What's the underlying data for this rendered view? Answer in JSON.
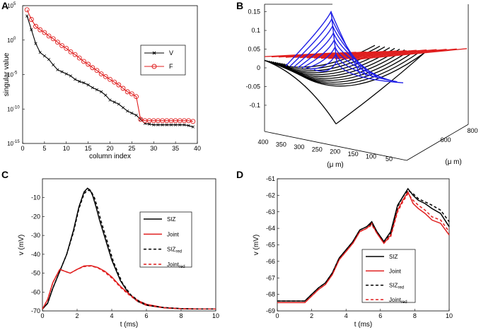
{
  "figure": {
    "colors": {
      "black": "#000000",
      "red": "#e01f1f",
      "blue": "#1f1fe6"
    }
  },
  "chart_data": [
    {
      "panel": "A",
      "type": "line",
      "y_scale": "log",
      "xlabel": "column index",
      "ylabel": "singular value",
      "xlim": [
        0,
        40
      ],
      "ylim": [
        1e-15,
        100000.0
      ],
      "x_ticks": [
        "0",
        "5",
        "10",
        "15",
        "20",
        "25",
        "30",
        "35",
        "40"
      ],
      "y_ticks": [
        {
          "base": "10",
          "exp": "-15"
        },
        {
          "base": "10",
          "exp": "-10"
        },
        {
          "base": "10",
          "exp": "-5"
        },
        {
          "base": "10",
          "exp": "0"
        },
        {
          "base": "10",
          "exp": "5"
        }
      ],
      "legend": [
        "V",
        "F"
      ],
      "series": [
        {
          "name": "V",
          "color": "#000000",
          "marker": "x",
          "x": [
            1,
            2,
            3,
            4,
            5,
            6,
            7,
            8,
            9,
            10,
            11,
            12,
            13,
            14,
            15,
            16,
            17,
            18,
            19,
            20,
            21,
            22,
            23,
            24,
            25,
            26,
            27,
            28,
            29,
            30,
            31,
            32,
            33,
            34,
            35,
            36,
            37,
            38,
            39
          ],
          "log10_values": [
            3.5,
            1.5,
            -0.5,
            -1.8,
            -2.3,
            -2.8,
            -3.6,
            -4.3,
            -4.6,
            -4.9,
            -5.2,
            -5.7,
            -6.0,
            -6.2,
            -6.5,
            -6.9,
            -7.2,
            -7.5,
            -8.0,
            -8.7,
            -9.0,
            -9.3,
            -9.8,
            -10.3,
            -10.6,
            -10.9,
            -11.5,
            -12.1,
            -12.2,
            -12.3,
            -12.3,
            -12.3,
            -12.3,
            -12.3,
            -12.3,
            -12.3,
            -12.3,
            -12.4,
            -12.6
          ]
        },
        {
          "name": "F",
          "color": "#e01f1f",
          "marker": "o",
          "x": [
            1,
            2,
            3,
            4,
            5,
            6,
            7,
            8,
            9,
            10,
            11,
            12,
            13,
            14,
            15,
            16,
            17,
            18,
            19,
            20,
            21,
            22,
            23,
            24,
            25,
            26,
            27,
            28,
            29,
            30,
            31,
            32,
            33,
            34,
            35,
            36,
            37,
            38,
            39
          ],
          "log10_values": [
            4.4,
            3.0,
            2.0,
            1.5,
            1.1,
            0.6,
            0.2,
            -0.3,
            -0.8,
            -1.2,
            -1.7,
            -2.1,
            -2.6,
            -3.1,
            -3.5,
            -4.0,
            -4.4,
            -4.9,
            -5.3,
            -5.7,
            -6.1,
            -6.5,
            -7.0,
            -7.5,
            -7.8,
            -8.2,
            -11.5,
            -11.7,
            -11.7,
            -11.7,
            -11.7,
            -11.7,
            -11.7,
            -11.7,
            -11.7,
            -11.7,
            -11.7,
            -11.7,
            -11.8
          ]
        }
      ]
    },
    {
      "panel": "B",
      "type": "line",
      "projection": "3d",
      "xlabel": "(μ m)",
      "ylabel": "(μ m)",
      "x_ticks": [
        "400",
        "350",
        "300",
        "250",
        "200",
        "150",
        "100",
        "50"
      ],
      "depth_ticks": [
        "600",
        "800"
      ],
      "z_ticks": [
        "-0.1",
        "-0.05",
        "0",
        "0.05",
        "0.1",
        "0.15"
      ],
      "zlim": [
        -0.17,
        0.17
      ],
      "series": [
        {
          "name": "black surface",
          "color": "#000000",
          "description_rows": 10
        },
        {
          "name": "blue surface",
          "color": "#1f1fe6",
          "peak_z": 0.15
        },
        {
          "name": "red surface",
          "color": "#e01f1f",
          "level_z": 0.03
        }
      ]
    },
    {
      "panel": "C",
      "type": "line",
      "xlabel": "t  (ms)",
      "ylabel": "v  (mV)",
      "xlim": [
        0,
        10
      ],
      "ylim": [
        -70,
        0
      ],
      "x_ticks": [
        "0",
        "2",
        "4",
        "6",
        "8",
        "10"
      ],
      "y_ticks": [
        "-70",
        "-60",
        "-50",
        "-40",
        "-30",
        "-20",
        "-10"
      ],
      "legend": [
        {
          "label": "SIZ",
          "sub": ""
        },
        {
          "label": "Joint",
          "sub": ""
        },
        {
          "label": "SIZ",
          "sub": "red"
        },
        {
          "label": "Joint",
          "sub": "red"
        }
      ],
      "series": [
        {
          "name": "SIZ",
          "color": "#000000",
          "dash": false,
          "x": [
            0,
            0.3,
            0.6,
            1.0,
            1.4,
            1.8,
            2.1,
            2.4,
            2.6,
            2.75,
            2.9,
            3.1,
            3.3,
            3.6,
            4.0,
            4.5,
            5.0,
            5.5,
            6.0,
            7.0,
            8.0,
            9.0,
            10.0
          ],
          "y": [
            -69,
            -66,
            -58,
            -49,
            -40,
            -27,
            -15,
            -7,
            -5,
            -6,
            -9,
            -15,
            -22,
            -31,
            -43,
            -54,
            -61,
            -65,
            -67,
            -68.3,
            -68.8,
            -69,
            -69
          ]
        },
        {
          "name": "Joint",
          "color": "#e01f1f",
          "dash": false,
          "x": [
            0,
            0.3,
            0.6,
            1.0,
            1.3,
            1.6,
            2.0,
            2.4,
            2.8,
            3.2,
            3.6,
            4.0,
            4.5,
            5.0,
            5.5,
            6.0,
            7.0,
            8.0,
            9.0,
            10.0
          ],
          "y": [
            -69,
            -64,
            -55,
            -48,
            -49,
            -50,
            -48,
            -46.2,
            -46,
            -47,
            -49,
            -52,
            -57,
            -61,
            -64.5,
            -66.5,
            -68.2,
            -68.8,
            -69,
            -69
          ]
        },
        {
          "name": "SIZ_red",
          "color": "#000000",
          "dash": true,
          "x": [
            0,
            0.3,
            0.6,
            1.0,
            1.4,
            1.8,
            2.1,
            2.4,
            2.6,
            2.8,
            3.0,
            3.2,
            3.4,
            3.7,
            4.1,
            4.6,
            5.1,
            5.6,
            6.1,
            7.0,
            8.0,
            9.0,
            10.0
          ],
          "y": [
            -69,
            -66,
            -58,
            -49,
            -40,
            -28,
            -16,
            -8,
            -6,
            -6.5,
            -10,
            -16,
            -23,
            -32,
            -44,
            -55,
            -61.5,
            -65,
            -67,
            -68.2,
            -68.8,
            -69,
            -69
          ]
        },
        {
          "name": "Joint_red",
          "color": "#e01f1f",
          "dash": true,
          "x": [
            0,
            0.3,
            0.6,
            1.0,
            1.3,
            1.6,
            2.0,
            2.4,
            2.8,
            3.2,
            3.6,
            4.0,
            4.5,
            5.0,
            5.5,
            6.0,
            7.0,
            8.0,
            9.0,
            10.0
          ],
          "y": [
            -69,
            -64,
            -55,
            -48,
            -49,
            -50,
            -48,
            -46.5,
            -46.2,
            -47.2,
            -49.5,
            -52.5,
            -57.5,
            -61.5,
            -65,
            -67,
            -68.4,
            -68.9,
            -69,
            -69
          ]
        }
      ]
    },
    {
      "panel": "D",
      "type": "line",
      "xlabel": "t  (ms)",
      "ylabel": "v  (mV)",
      "xlim": [
        0,
        10
      ],
      "ylim": [
        -69,
        -61
      ],
      "x_ticks": [
        "0",
        "2",
        "4",
        "6",
        "8",
        "10"
      ],
      "y_ticks": [
        "-69",
        "-68",
        "-67",
        "-66",
        "-65",
        "-64",
        "-63",
        "-62",
        "-61"
      ],
      "legend": [
        {
          "label": "SIZ",
          "sub": ""
        },
        {
          "label": "Joint",
          "sub": ""
        },
        {
          "label": "SIZ",
          "sub": "red"
        },
        {
          "label": "Joint",
          "sub": "red"
        }
      ],
      "series": [
        {
          "name": "SIZ",
          "color": "#000000",
          "dash": false,
          "x": [
            0,
            1.0,
            1.6,
            2.0,
            2.4,
            2.8,
            3.2,
            3.6,
            4.0,
            4.4,
            4.8,
            5.2,
            5.5,
            5.8,
            6.2,
            6.6,
            7.0,
            7.3,
            7.6,
            7.9,
            8.2,
            8.6,
            9.0,
            9.5,
            10.0
          ],
          "y": [
            -68.4,
            -68.4,
            -68.4,
            -68.0,
            -67.6,
            -67.3,
            -66.7,
            -65.8,
            -65.3,
            -64.8,
            -64.1,
            -63.9,
            -63.6,
            -64.2,
            -64.8,
            -64.2,
            -62.6,
            -62.1,
            -61.6,
            -62.0,
            -62.3,
            -62.5,
            -62.8,
            -63.1,
            -63.9
          ]
        },
        {
          "name": "Joint",
          "color": "#e01f1f",
          "dash": false,
          "x": [
            0,
            1.0,
            1.6,
            2.0,
            2.4,
            2.8,
            3.2,
            3.6,
            4.0,
            4.4,
            4.8,
            5.2,
            5.5,
            5.8,
            6.2,
            6.6,
            7.0,
            7.3,
            7.6,
            7.9,
            8.2,
            8.6,
            9.0,
            9.5,
            10.0
          ],
          "y": [
            -68.5,
            -68.5,
            -68.5,
            -68.1,
            -67.7,
            -67.4,
            -66.8,
            -65.9,
            -65.4,
            -64.9,
            -64.2,
            -64.0,
            -63.7,
            -64.3,
            -64.9,
            -64.4,
            -62.9,
            -62.3,
            -61.8,
            -62.5,
            -62.8,
            -63.1,
            -63.5,
            -63.7,
            -64.4
          ]
        },
        {
          "name": "SIZ_red",
          "color": "#000000",
          "dash": true,
          "x": [
            0,
            1.0,
            1.6,
            2.0,
            2.4,
            2.8,
            3.2,
            3.6,
            4.0,
            4.4,
            4.8,
            5.2,
            5.5,
            5.8,
            6.2,
            6.6,
            7.0,
            7.3,
            7.6,
            7.9,
            8.2,
            8.6,
            9.0,
            9.5,
            10.0
          ],
          "y": [
            -68.4,
            -68.4,
            -68.4,
            -68.0,
            -67.6,
            -67.3,
            -66.7,
            -65.8,
            -65.3,
            -64.8,
            -64.1,
            -63.9,
            -63.7,
            -64.2,
            -64.8,
            -64.3,
            -62.7,
            -62.1,
            -61.7,
            -61.9,
            -62.2,
            -62.4,
            -62.6,
            -62.9,
            -63.6
          ]
        },
        {
          "name": "Joint_red",
          "color": "#e01f1f",
          "dash": true,
          "x": [
            0,
            1.0,
            1.6,
            2.0,
            2.4,
            2.8,
            3.2,
            3.6,
            4.0,
            4.4,
            4.8,
            5.2,
            5.5,
            5.8,
            6.2,
            6.6,
            7.0,
            7.3,
            7.6,
            7.9,
            8.2,
            8.6,
            9.0,
            9.5,
            10.0
          ],
          "y": [
            -68.5,
            -68.5,
            -68.5,
            -68.1,
            -67.7,
            -67.4,
            -66.8,
            -65.9,
            -65.4,
            -64.9,
            -64.2,
            -64.0,
            -63.8,
            -64.3,
            -64.9,
            -64.5,
            -63.0,
            -62.4,
            -61.9,
            -62.3,
            -62.6,
            -62.9,
            -63.3,
            -63.5,
            -64.2
          ]
        }
      ]
    }
  ]
}
